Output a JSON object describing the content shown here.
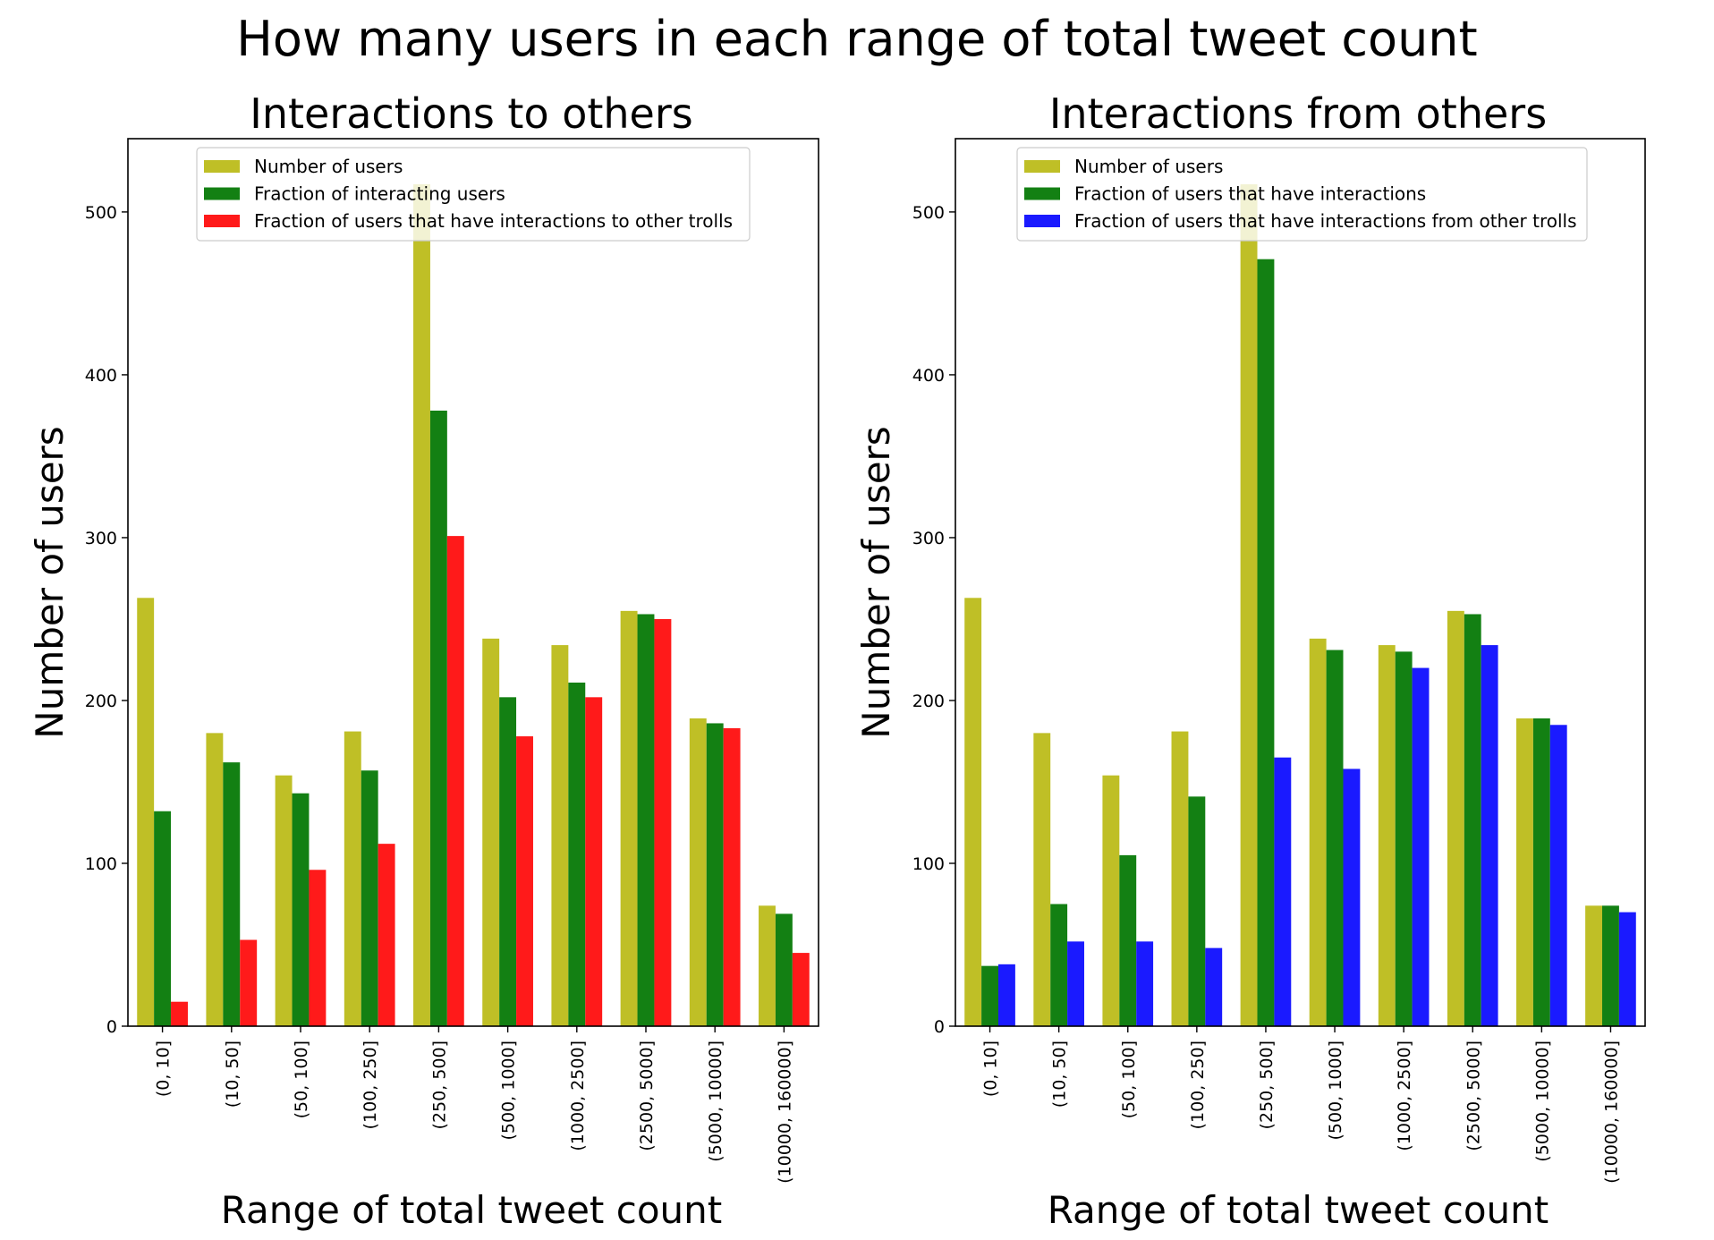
{
  "figure": {
    "title": "How many users in each range of total tweet count"
  },
  "chart_data": [
    {
      "type": "bar",
      "title": "Interactions to others",
      "xlabel": "Range of total tweet count",
      "ylabel": "Number of users",
      "ylim": [
        0,
        545
      ],
      "yticks": [
        0,
        100,
        200,
        300,
        400,
        500
      ],
      "grid": false,
      "legend_position": "top-center",
      "categories": [
        "(0, 10]",
        "(10, 50]",
        "(50, 100]",
        "(100, 250]",
        "(250, 500]",
        "(500, 1000]",
        "(1000, 2500]",
        "(2500, 5000]",
        "(5000, 10000]",
        "(10000, 160000]"
      ],
      "series": [
        {
          "name": "Number of users",
          "color": "#bfbf26",
          "values": [
            263,
            180,
            154,
            181,
            517,
            238,
            234,
            255,
            189,
            74
          ]
        },
        {
          "name": "Fraction of interacting users",
          "color": "#138013",
          "values": [
            132,
            162,
            143,
            157,
            378,
            202,
            211,
            253,
            186,
            69
          ]
        },
        {
          "name": "Fraction of users that have interactions to other trolls",
          "color": "#ff1a1a",
          "values": [
            15,
            53,
            96,
            112,
            301,
            178,
            202,
            250,
            183,
            45
          ]
        }
      ]
    },
    {
      "type": "bar",
      "title": "Interactions from others",
      "xlabel": "Range of total tweet count",
      "ylabel": "Number of users",
      "ylim": [
        0,
        545
      ],
      "yticks": [
        0,
        100,
        200,
        300,
        400,
        500
      ],
      "grid": false,
      "legend_position": "top-center",
      "categories": [
        "(0, 10]",
        "(10, 50]",
        "(50, 100]",
        "(100, 250]",
        "(250, 500]",
        "(500, 1000]",
        "(1000, 2500]",
        "(2500, 5000]",
        "(5000, 10000]",
        "(10000, 160000]"
      ],
      "series": [
        {
          "name": "Number of users",
          "color": "#bfbf26",
          "values": [
            263,
            180,
            154,
            181,
            517,
            238,
            234,
            255,
            189,
            74
          ]
        },
        {
          "name": "Fraction of users that have interactions",
          "color": "#138013",
          "values": [
            37,
            75,
            105,
            141,
            471,
            231,
            230,
            253,
            189,
            74
          ]
        },
        {
          "name": "Fraction of users that have interactions from other trolls",
          "color": "#1a1aff",
          "values": [
            38,
            52,
            52,
            48,
            165,
            158,
            220,
            234,
            185,
            70
          ]
        }
      ]
    }
  ]
}
